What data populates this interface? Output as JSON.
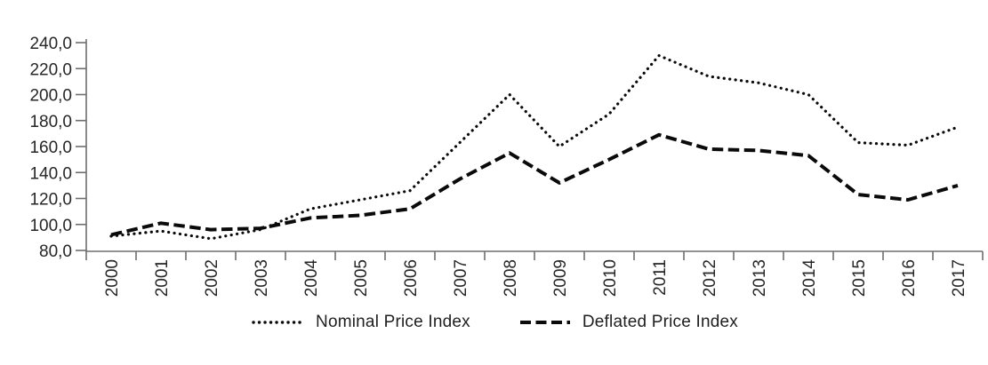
{
  "chart_data": {
    "type": "line",
    "title": "",
    "xlabel": "",
    "ylabel": "",
    "categories": [
      "2000",
      "2001",
      "2002",
      "2003",
      "2004",
      "2005",
      "2006",
      "2007",
      "2008",
      "2009",
      "2010",
      "2011",
      "2012",
      "2013",
      "2014",
      "2015",
      "2016",
      "2017"
    ],
    "series": [
      {
        "name": "Nominal Price Index",
        "style": "dotted",
        "values": [
          91,
          95,
          89,
          96,
          112,
          119,
          126,
          163,
          200,
          160,
          185,
          230,
          214,
          209,
          200,
          163,
          161,
          175
        ]
      },
      {
        "name": "Deflated Price Index",
        "style": "dashed",
        "values": [
          92,
          101,
          96,
          97,
          105,
          107,
          112,
          135,
          155,
          132,
          150,
          169,
          158,
          157,
          153,
          123,
          119,
          130
        ]
      }
    ],
    "ylim": [
      80,
      240
    ],
    "ytick_step": 20,
    "ytick_labels": [
      "240,0",
      "220,0",
      "200,0",
      "180,0",
      "160,0",
      "140,0",
      "120,0",
      "100,0",
      "80,0"
    ],
    "decimal_separator": ",",
    "grid": false,
    "legend_position": "bottom",
    "line_color": "#0a0a0a",
    "axis_color": "#6e6e6e",
    "label_color": "#262626"
  }
}
